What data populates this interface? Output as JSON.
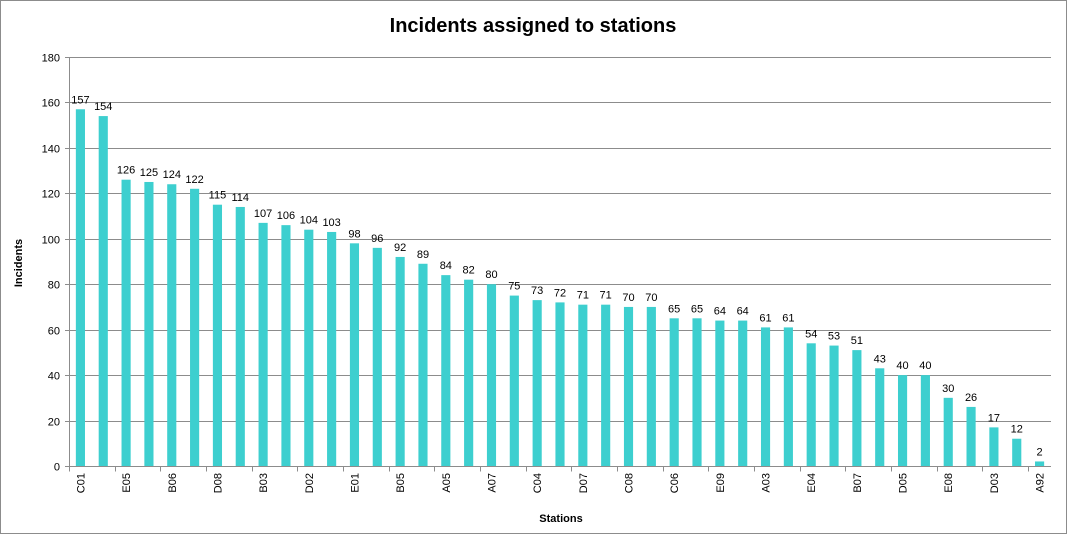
{
  "chart_data": {
    "type": "bar",
    "title": "Incidents assigned to stations",
    "xlabel": "Stations",
    "ylabel": "Incidents",
    "ylim": [
      0,
      180
    ],
    "yticks": [
      0,
      20,
      40,
      60,
      80,
      100,
      120,
      140,
      160,
      180
    ],
    "grid": true,
    "legend": "none",
    "bar_color": "#3dcfcf",
    "categories": [
      "C01",
      "",
      "E05",
      "",
      "B06",
      "",
      "D08",
      "",
      "B03",
      "",
      "D02",
      "",
      "E01",
      "",
      "B05",
      "",
      "A05",
      "",
      "A07",
      "",
      "C04",
      "",
      "D07",
      "",
      "C08",
      "",
      "C06",
      "",
      "E09",
      "",
      "A03",
      "",
      "E04",
      "",
      "B07",
      "",
      "D05",
      "",
      "E08",
      "",
      "D03",
      "",
      "A92"
    ],
    "values": [
      157,
      154,
      126,
      125,
      124,
      122,
      115,
      114,
      107,
      106,
      104,
      103,
      98,
      96,
      92,
      89,
      84,
      82,
      80,
      75,
      73,
      72,
      71,
      71,
      70,
      70,
      65,
      65,
      64,
      64,
      61,
      61,
      54,
      53,
      51,
      43,
      40,
      40,
      30,
      26,
      17,
      12,
      2
    ]
  }
}
